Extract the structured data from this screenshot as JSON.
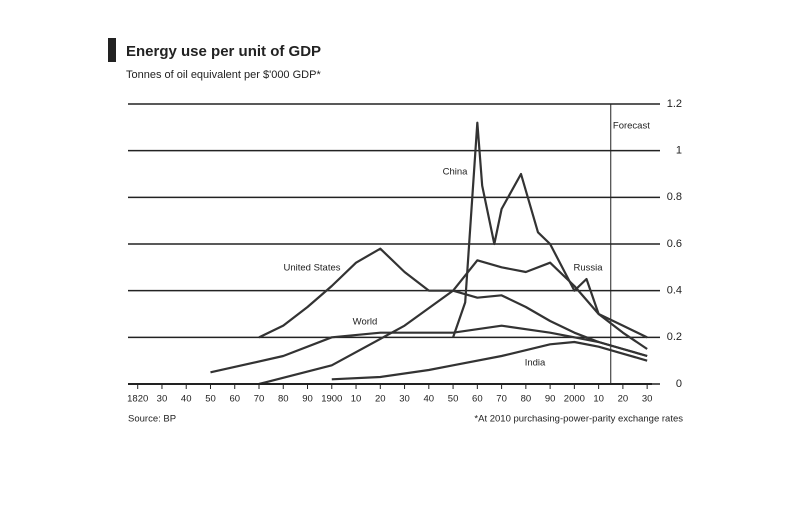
{
  "chart_data": {
    "type": "line",
    "title": "Energy use per unit of GDP",
    "subtitle": "Tonnes of oil equivalent per $'000 GDP*",
    "source": "Source: BP",
    "footnote": "*At 2010 purchasing-power-parity exchange rates",
    "forecast_label": "Forecast",
    "forecast_start": 2015,
    "xlim": [
      1816,
      2032
    ],
    "xticks": [
      {
        "value": 1820,
        "label": "1820"
      },
      {
        "value": 1830,
        "label": "30"
      },
      {
        "value": 1840,
        "label": "40"
      },
      {
        "value": 1850,
        "label": "50"
      },
      {
        "value": 1860,
        "label": "60"
      },
      {
        "value": 1870,
        "label": "70"
      },
      {
        "value": 1880,
        "label": "80"
      },
      {
        "value": 1890,
        "label": "90"
      },
      {
        "value": 1900,
        "label": "1900"
      },
      {
        "value": 1910,
        "label": "10"
      },
      {
        "value": 1920,
        "label": "20"
      },
      {
        "value": 1930,
        "label": "30"
      },
      {
        "value": 1940,
        "label": "40"
      },
      {
        "value": 1950,
        "label": "50"
      },
      {
        "value": 1960,
        "label": "60"
      },
      {
        "value": 1970,
        "label": "70"
      },
      {
        "value": 1980,
        "label": "80"
      },
      {
        "value": 1990,
        "label": "90"
      },
      {
        "value": 2000,
        "label": "2000"
      },
      {
        "value": 2010,
        "label": "10"
      },
      {
        "value": 2020,
        "label": "20"
      },
      {
        "value": 2030,
        "label": "30"
      }
    ],
    "ylim": [
      0,
      1.2
    ],
    "yticks": [
      0,
      0.2,
      0.4,
      0.6,
      0.8,
      1.0,
      1.2
    ],
    "grid": true,
    "series": [
      {
        "name": "United States",
        "color": "#333333",
        "x": [
          1870,
          1880,
          1890,
          1900,
          1910,
          1920,
          1930,
          1940,
          1950,
          1960,
          1970,
          1980,
          1990,
          2000,
          2010,
          2020,
          2030
        ],
        "values": [
          0.2,
          0.25,
          0.33,
          0.42,
          0.52,
          0.58,
          0.48,
          0.4,
          0.4,
          0.37,
          0.38,
          0.33,
          0.27,
          0.22,
          0.18,
          0.15,
          0.12
        ]
      },
      {
        "name": "China",
        "color": "#333333",
        "x": [
          1950,
          1955,
          1960,
          1962,
          1967,
          1970,
          1978,
          1985,
          1990,
          2000,
          2005,
          2010,
          2020,
          2030
        ],
        "values": [
          0.2,
          0.35,
          1.12,
          0.85,
          0.6,
          0.75,
          0.9,
          0.65,
          0.6,
          0.4,
          0.45,
          0.3,
          0.22,
          0.15
        ]
      },
      {
        "name": "Russia",
        "color": "#333333",
        "x": [
          1870,
          1900,
          1930,
          1950,
          1960,
          1970,
          1980,
          1990,
          2000,
          2010,
          2020,
          2030
        ],
        "values": [
          0,
          0.08,
          0.25,
          0.4,
          0.53,
          0.5,
          0.48,
          0.52,
          0.42,
          0.3,
          0.25,
          0.2
        ]
      },
      {
        "name": "World",
        "color": "#333333",
        "x": [
          1850,
          1880,
          1900,
          1920,
          1950,
          1970,
          1990,
          2000,
          2010,
          2020,
          2030
        ],
        "values": [
          0.05,
          0.12,
          0.2,
          0.22,
          0.22,
          0.25,
          0.22,
          0.2,
          0.18,
          0.15,
          0.12
        ]
      },
      {
        "name": "India",
        "color": "#333333",
        "x": [
          1900,
          1920,
          1940,
          1950,
          1970,
          1990,
          2000,
          2010,
          2020,
          2030
        ],
        "values": [
          0.02,
          0.03,
          0.06,
          0.08,
          0.12,
          0.17,
          0.18,
          0.16,
          0.13,
          0.1
        ]
      }
    ]
  }
}
